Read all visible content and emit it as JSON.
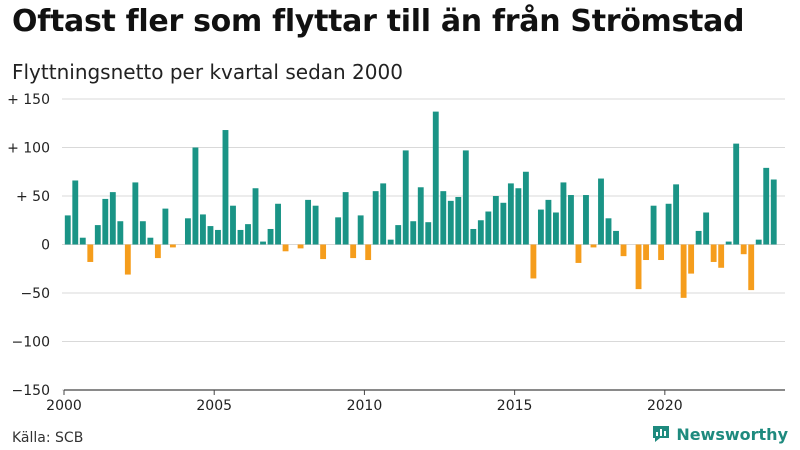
{
  "title": "Oftast fler som flyttar till än från Strömstad",
  "subtitle": "Flyttningsnetto per kvartal sedan 2000",
  "source": "Källa: SCB",
  "brand": {
    "name": "Newsworthy",
    "icon": "newsworthy-logo-icon"
  },
  "colors": {
    "positive": "#1a9486",
    "negative": "#f59d1c",
    "grid": "#d9d9d9",
    "axis": "#444444"
  },
  "chart_data": {
    "type": "bar",
    "x_start": 2000.0,
    "x_step": 0.25,
    "ylim": [
      -150,
      150
    ],
    "xlim": [
      2000,
      2024
    ],
    "yticks": [
      150,
      100,
      50,
      0,
      -50,
      -100,
      -150
    ],
    "ytick_labels": [
      "+ 150",
      "+ 100",
      "+  50",
      "0",
      "−50",
      "−100",
      "−150"
    ],
    "xticks": [
      2000,
      2005,
      2010,
      2015,
      2020
    ],
    "xtick_labels": [
      "2000",
      "2005",
      "2010",
      "2015",
      "2020"
    ],
    "grid": true,
    "values": [
      30,
      66,
      7,
      -18,
      20,
      47,
      54,
      24,
      -31,
      64,
      24,
      7,
      -14,
      37,
      -3,
      0,
      27,
      100,
      31,
      19,
      15,
      118,
      40,
      15,
      21,
      58,
      3,
      16,
      42,
      -7,
      0,
      -4,
      46,
      40,
      -15,
      0,
      28,
      54,
      -14,
      30,
      -16,
      55,
      63,
      5,
      20,
      97,
      24,
      59,
      23,
      137,
      55,
      45,
      49,
      97,
      16,
      25,
      34,
      50,
      43,
      63,
      58,
      75,
      -35,
      36,
      46,
      33,
      64,
      51,
      -19,
      51,
      -3,
      68,
      27,
      14,
      -12,
      0,
      -46,
      -16,
      40,
      -16,
      42,
      62,
      -55,
      -30,
      14,
      33,
      -18,
      -24,
      3,
      104,
      -10,
      -47,
      5,
      79,
      67
    ]
  }
}
